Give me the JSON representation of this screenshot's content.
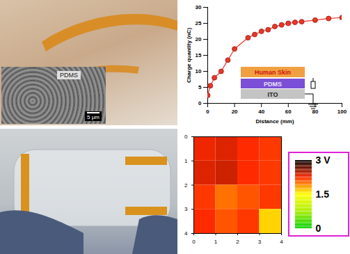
{
  "inset_micrograph": {
    "label": "PDMS",
    "scale_bar": "5 μm"
  },
  "chart_data": [
    {
      "type": "line",
      "x": [
        0,
        2,
        5,
        10,
        15,
        20,
        30,
        35,
        40,
        45,
        50,
        55,
        60,
        65,
        70,
        80,
        90,
        100
      ],
      "values": [
        2.5,
        5.5,
        8,
        10,
        13.5,
        17,
        20.5,
        21.5,
        22.5,
        23,
        24,
        24.5,
        25,
        25.3,
        25.5,
        26,
        26.5,
        26.8
      ],
      "color": "#e8372a",
      "marker": "circle",
      "line_style": "solid",
      "xlabel": "Distance (mm)",
      "ylabel": "Charge quantity (nC)",
      "xlim": [
        0,
        100
      ],
      "ylim": [
        0,
        30
      ],
      "xticks": [
        0,
        20,
        40,
        60,
        80,
        100
      ],
      "yticks": [
        0,
        5,
        10,
        15,
        20,
        25,
        30
      ],
      "grid": false,
      "annotations": [
        "Human Skin",
        "PDMS",
        "ITO"
      ]
    },
    {
      "type": "heatmap",
      "cells": [
        [
          2.3,
          2.35,
          2.25,
          2.2
        ],
        [
          2.35,
          2.4,
          2.25,
          2.2
        ],
        [
          2.2,
          2.0,
          2.1,
          2.2
        ],
        [
          2.25,
          2.1,
          2.2,
          1.65
        ]
      ],
      "xlim": [
        0,
        4
      ],
      "ylim": [
        4,
        0
      ],
      "xticks": [
        0,
        1,
        2,
        3,
        4
      ],
      "yticks": [
        0,
        1,
        2,
        3,
        4
      ],
      "colorbar": {
        "range": [
          0,
          3
        ],
        "ticks": [
          {
            "value": 3,
            "label": "3 V"
          },
          1.5,
          0
        ]
      }
    }
  ]
}
